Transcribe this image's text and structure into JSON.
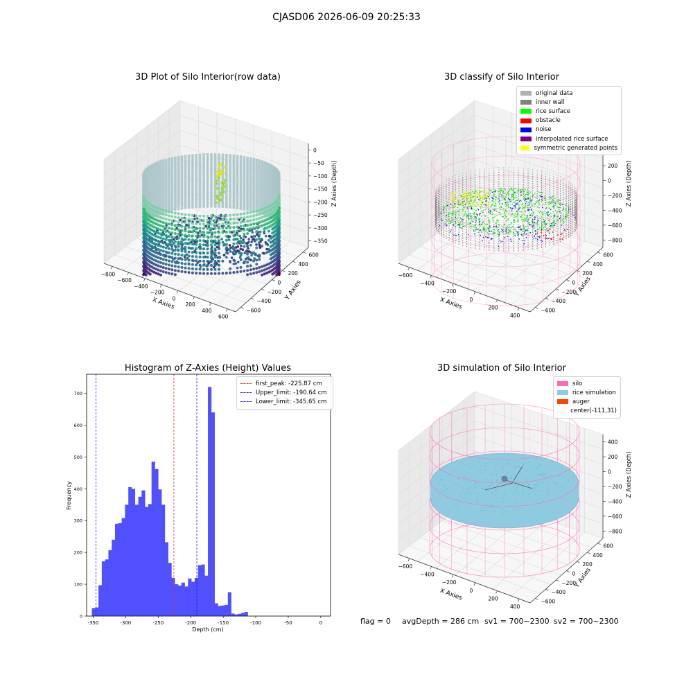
{
  "suptitle": "CJASD06 2026-06-09 20:25:33",
  "chart_data": [
    {
      "type": "scatter",
      "title": "3D Plot of Silo Interior(row data)",
      "xlabel": "X Axies",
      "ylabel": "Y Axies",
      "zlabel": "Z Axies (Depth)",
      "x_ticks": [
        "−800",
        "−600",
        "−400",
        "−200",
        "0",
        "200",
        "400",
        "600"
      ],
      "y_ticks": [
        "−600",
        "−400",
        "−200",
        "0",
        "200",
        "400",
        "600"
      ],
      "z_ticks": [
        "0",
        "−50",
        "−100",
        "−150",
        "−200",
        "−250",
        "−300",
        "−350"
      ],
      "colormap": "viridis"
    },
    {
      "type": "scatter",
      "title": "3D classify of Silo Interior",
      "xlabel": "X Axies",
      "ylabel": "Y Axies",
      "zlabel": "Z Axies (Depth)",
      "x_ticks": [
        "−600",
        "−400",
        "−200",
        "0",
        "200",
        "400"
      ],
      "y_ticks": [
        "−600",
        "−400",
        "−200",
        "0",
        "200",
        "400",
        "600"
      ],
      "z_ticks": [
        "400",
        "200",
        "0",
        "−200",
        "−400",
        "−600",
        "−800"
      ],
      "legend": [
        {
          "label": "original data",
          "color": "#b0b0b0"
        },
        {
          "label": "inner wall",
          "color": "#808080"
        },
        {
          "label": "rice surface",
          "color": "#00ff00"
        },
        {
          "label": "obstacle",
          "color": "#ff0000"
        },
        {
          "label": "noise",
          "color": "#0000ff"
        },
        {
          "label": "interpolated rice surface",
          "color": "#800080"
        },
        {
          "label": "symmetric generated points",
          "color": "#ffff00"
        }
      ]
    },
    {
      "type": "bar",
      "title": "Histogram of Z-Axies (Height) Values",
      "xlabel": "Depth (cm)",
      "ylabel": "Frequency",
      "xlim": [
        -360,
        15
      ],
      "ylim": [
        0,
        760
      ],
      "x_ticks": [
        -350,
        -300,
        -250,
        -200,
        -150,
        -100,
        -50,
        0
      ],
      "y_ticks": [
        0,
        100,
        200,
        300,
        400,
        500,
        600,
        700
      ],
      "bin_start": -352,
      "bin_width": 5.1,
      "values": [
        25,
        27,
        97,
        172,
        178,
        207,
        240,
        290,
        292,
        308,
        350,
        405,
        400,
        350,
        375,
        395,
        343,
        352,
        485,
        462,
        398,
        350,
        232,
        167,
        120,
        100,
        96,
        105,
        93,
        118,
        108,
        120,
        160,
        162,
        127,
        720,
        640,
        40,
        32,
        33,
        35,
        75,
        8,
        5,
        7,
        10,
        13
      ],
      "bar_color": "#5050ff",
      "vlines": [
        {
          "label": "first_peak: -225.87 cm",
          "x": -225.87,
          "color": "#e03030"
        },
        {
          "label": "Upper_limit: -190.64 cm",
          "x": -190.64,
          "color": "#2020dd"
        },
        {
          "label": "Lower_limit: -345.65 cm",
          "x": -345.65,
          "color": "#2020dd"
        }
      ],
      "legend_position": "top-right"
    },
    {
      "type": "scatter",
      "title": "3D simulation of Silo Interior",
      "xlabel": "X Axies",
      "ylabel": "Y Axies",
      "zlabel": "Z Axies (Depth)",
      "x_ticks": [
        "−600",
        "−400",
        "−200",
        "0",
        "200",
        "400"
      ],
      "y_ticks": [
        "−600",
        "−400",
        "−200",
        "0",
        "200",
        "400",
        "600"
      ],
      "z_ticks": [
        "400",
        "200",
        "0",
        "−200",
        "−400",
        "−600",
        "−800"
      ],
      "legend": [
        {
          "label": "silo",
          "color": "#ff69b4"
        },
        {
          "label": "rice simulation",
          "color": "#87ceeb"
        },
        {
          "label": "auger",
          "color": "#ff4500"
        },
        {
          "label": "center(-111,31)",
          "color": ""
        }
      ]
    }
  ],
  "footer": {
    "flag": "flag = 0",
    "avg": "avgDepth = 286 cm",
    "sv1": "sv1 = 700~2300",
    "sv2": "sv2 = 700~2300"
  }
}
